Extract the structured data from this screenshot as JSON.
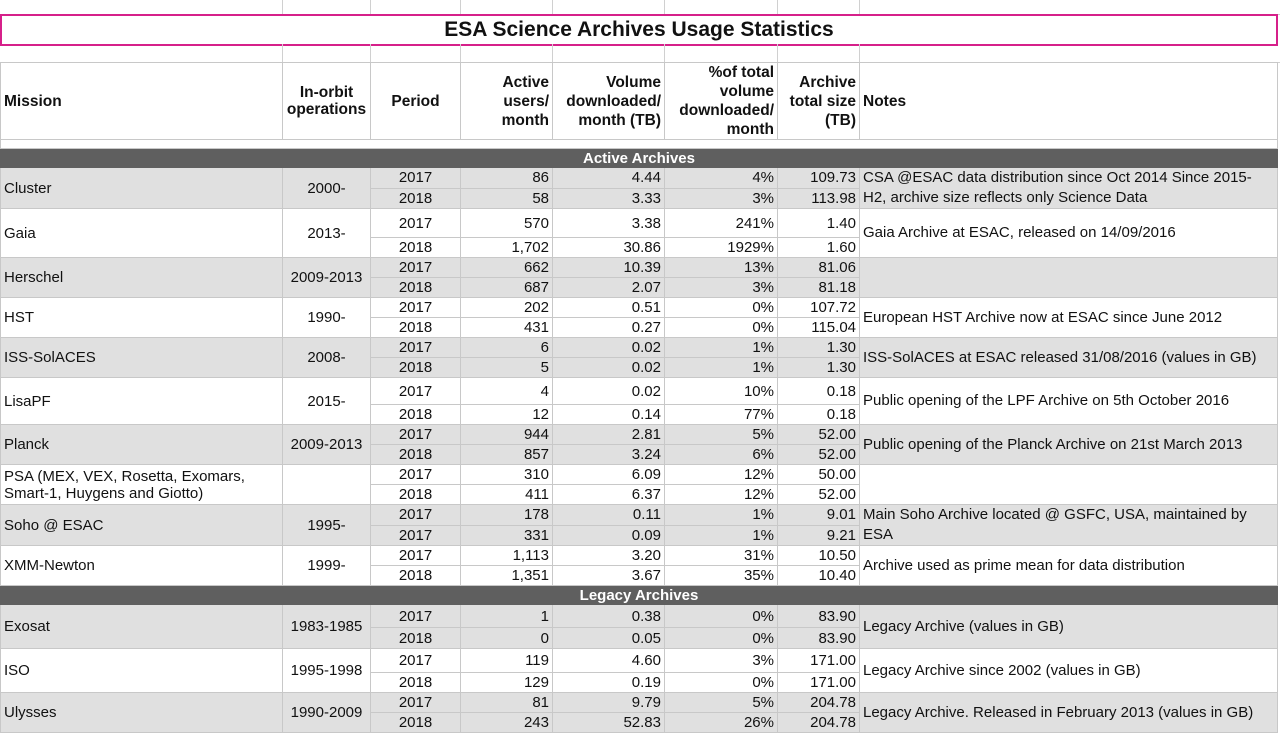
{
  "title": "ESA Science Archives Usage Statistics",
  "columns": {
    "mission": "Mission",
    "operations": "In-orbit operations",
    "period": "Period",
    "users": "Active users/ month",
    "volume": "Volume downloaded/ month (TB)",
    "pct": "%of total volume downloaded/ month",
    "size": "Archive total size (TB)",
    "notes": "Notes"
  },
  "sections": [
    {
      "label": "Active Archives",
      "missions": [
        {
          "name": "Cluster",
          "ops": "2000-",
          "notes": "CSA @ESAC data distribution since Oct 2014 Since 2015-H2, archive size reflects only Science Data",
          "rows": [
            [
              "2017",
              "86",
              "4.44",
              "4%",
              "109.73"
            ],
            [
              "2018",
              "58",
              "3.33",
              "3%",
              "113.98"
            ]
          ]
        },
        {
          "name": "Gaia",
          "ops": "2013-",
          "notes": "Gaia Archive at ESAC, released on 14/09/2016",
          "rows": [
            [
              "2017",
              "570",
              "3.38",
              "241%",
              "1.40"
            ],
            [
              "2018",
              "1,702",
              "30.86",
              "1929%",
              "1.60"
            ]
          ]
        },
        {
          "name": "Herschel",
          "ops": "2009-2013",
          "notes": "",
          "rows": [
            [
              "2017",
              "662",
              "10.39",
              "13%",
              "81.06"
            ],
            [
              "2018",
              "687",
              "2.07",
              "3%",
              "81.18"
            ]
          ]
        },
        {
          "name": "HST",
          "ops": "1990-",
          "notes": "European HST Archive now at ESAC since June 2012",
          "rows": [
            [
              "2017",
              "202",
              "0.51",
              "0%",
              "107.72"
            ],
            [
              "2018",
              "431",
              "0.27",
              "0%",
              "115.04"
            ]
          ]
        },
        {
          "name": "ISS-SolACES",
          "ops": "2008-",
          "notes": "ISS-SolACES at ESAC released 31/08/2016 (values in GB)",
          "rows": [
            [
              "2017",
              "6",
              "0.02",
              "1%",
              "1.30"
            ],
            [
              "2018",
              "5",
              "0.02",
              "1%",
              "1.30"
            ]
          ]
        },
        {
          "name": "LisaPF",
          "ops": "2015-",
          "notes": "Public opening of the LPF Archive on 5th October 2016",
          "rows": [
            [
              "2017",
              "4",
              "0.02",
              "10%",
              "0.18"
            ],
            [
              "2018",
              "12",
              "0.14",
              "77%",
              "0.18"
            ]
          ]
        },
        {
          "name": "Planck",
          "ops": "2009-2013",
          "notes": "Public opening of the Planck Archive on 21st March 2013",
          "rows": [
            [
              "2017",
              "944",
              "2.81",
              "5%",
              "52.00"
            ],
            [
              "2018",
              "857",
              "3.24",
              "6%",
              "52.00"
            ]
          ]
        },
        {
          "name": "PSA (MEX, VEX, Rosetta, Exomars, Smart-1, Huygens and Giotto)",
          "ops": "",
          "notes": "",
          "rows": [
            [
              "2017",
              "310",
              "6.09",
              "12%",
              "50.00"
            ],
            [
              "2018",
              "411",
              "6.37",
              "12%",
              "52.00"
            ]
          ]
        },
        {
          "name": "Soho @ ESAC",
          "ops": "1995-",
          "notes": "Main Soho Archive located @ GSFC, USA, maintained by ESA",
          "rows": [
            [
              "2017",
              "178",
              "0.11",
              "1%",
              "9.01"
            ],
            [
              "2017",
              "331",
              "0.09",
              "1%",
              "9.21"
            ]
          ]
        },
        {
          "name": "XMM-Newton",
          "ops": "1999-",
          "notes": "Archive used as prime mean for data distribution",
          "rows": [
            [
              "2017",
              "1,113",
              "3.20",
              "31%",
              "10.50"
            ],
            [
              "2018",
              "1,351",
              "3.67",
              "35%",
              "10.40"
            ]
          ]
        }
      ]
    },
    {
      "label": "Legacy Archives",
      "missions": [
        {
          "name": "Exosat",
          "ops": "1983-1985",
          "notes": "Legacy Archive (values in GB)",
          "rows": [
            [
              "2017",
              "1",
              "0.38",
              "0%",
              "83.90"
            ],
            [
              "2018",
              "0",
              "0.05",
              "0%",
              "83.90"
            ]
          ]
        },
        {
          "name": "ISO",
          "ops": "1995-1998",
          "notes": "Legacy Archive since 2002 (values in GB)",
          "rows": [
            [
              "2017",
              "119",
              "4.60",
              "3%",
              "171.00"
            ],
            [
              "2018",
              "129",
              "0.19",
              "0%",
              "171.00"
            ]
          ]
        },
        {
          "name": "Ulysses",
          "ops": "1990-2009",
          "notes": "Legacy Archive. Released in February 2013 (values in GB)",
          "rows": [
            [
              "2017",
              "81",
              "9.79",
              "5%",
              "204.78"
            ],
            [
              "2018",
              "243",
              "52.83",
              "26%",
              "204.78"
            ]
          ]
        }
      ]
    }
  ]
}
